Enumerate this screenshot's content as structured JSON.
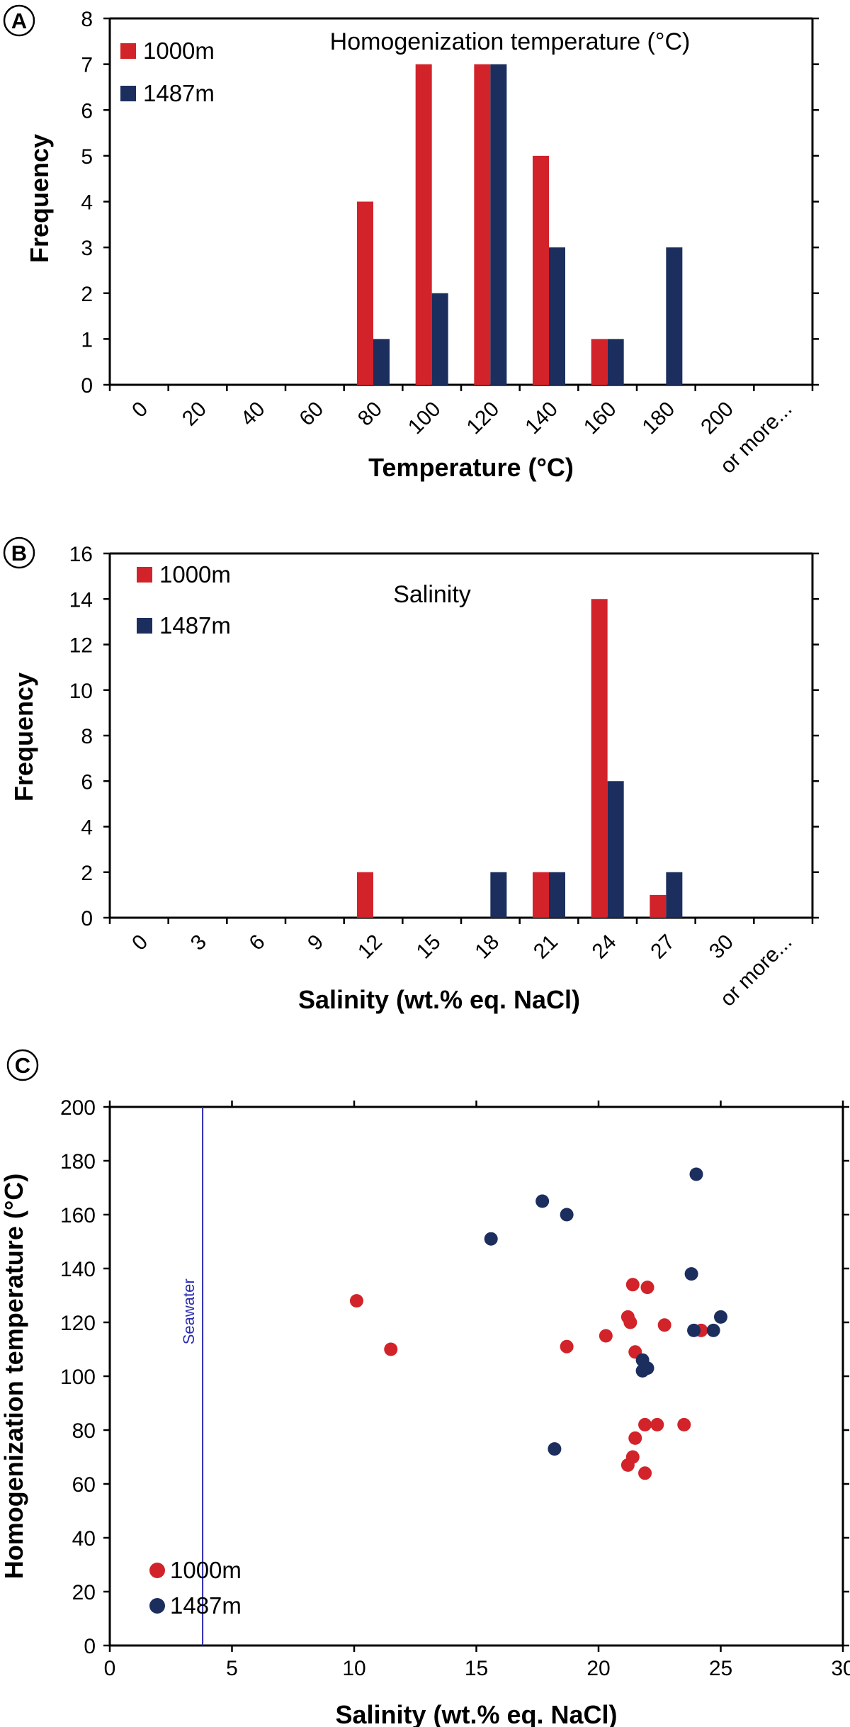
{
  "colors": {
    "red": "#d2232a",
    "navy": "#1b2e5e",
    "seawater": "#2b2bb0",
    "axis": "#000000"
  },
  "chart_data": [
    {
      "type": "bar",
      "panel": "A",
      "title": "Homogenization  temperature (°C)",
      "xlabel": "Temperature (°C)",
      "ylabel": "Frequency",
      "categories": [
        "0",
        "20",
        "40",
        "60",
        "80",
        "100",
        "120",
        "140",
        "160",
        "180",
        "200",
        "or more..."
      ],
      "series": [
        {
          "name": "1000m",
          "color": "#d2232a",
          "values": [
            0,
            0,
            0,
            0,
            4,
            7,
            7,
            5,
            1,
            0,
            0,
            0
          ]
        },
        {
          "name": "1487m",
          "color": "#1b2e5e",
          "values": [
            0,
            0,
            0,
            0,
            1,
            2,
            7,
            3,
            1,
            3,
            0,
            0
          ]
        }
      ],
      "ylim": [
        0,
        8
      ],
      "yticks": [
        0,
        1,
        2,
        3,
        4,
        5,
        6,
        7,
        8
      ],
      "legend": "top-left",
      "grid": false
    },
    {
      "type": "bar",
      "panel": "B",
      "title": "Salinity",
      "xlabel": "Salinity (wt.% eq. NaCl)",
      "ylabel": "Frequency",
      "categories": [
        "0",
        "3",
        "6",
        "9",
        "12",
        "15",
        "18",
        "21",
        "24",
        "27",
        "30",
        "or more..."
      ],
      "series": [
        {
          "name": "1000m",
          "color": "#d2232a",
          "values": [
            0,
            0,
            0,
            0,
            2,
            0,
            0,
            2,
            14,
            1,
            0,
            0
          ]
        },
        {
          "name": "1487m",
          "color": "#1b2e5e",
          "values": [
            0,
            0,
            0,
            0,
            0,
            0,
            2,
            2,
            6,
            2,
            0,
            0
          ]
        }
      ],
      "ylim": [
        0,
        16
      ],
      "yticks": [
        0,
        2,
        4,
        6,
        8,
        10,
        12,
        14,
        16
      ],
      "legend": "top-left",
      "grid": false
    },
    {
      "type": "scatter",
      "panel": "C",
      "xlabel": "Salinity (wt.% eq. NaCl)",
      "ylabel": "Homogenization temperature (°C)",
      "xlim": [
        0,
        30
      ],
      "ylim": [
        0,
        200
      ],
      "xticks": [
        0,
        5,
        10,
        15,
        20,
        25,
        30
      ],
      "yticks": [
        0,
        20,
        40,
        60,
        80,
        100,
        120,
        140,
        160,
        180,
        200
      ],
      "annotation": {
        "label": "Seawater",
        "x": 3.8
      },
      "series": [
        {
          "name": "1000m",
          "color": "#d2232a",
          "points": [
            [
              10.1,
              128
            ],
            [
              11.5,
              110
            ],
            [
              18.7,
              111
            ],
            [
              20.3,
              115
            ],
            [
              21.2,
              122
            ],
            [
              21.3,
              120
            ],
            [
              21.4,
              134
            ],
            [
              21.5,
              109
            ],
            [
              22.0,
              133
            ],
            [
              22.7,
              119
            ],
            [
              24.2,
              117
            ],
            [
              21.2,
              67
            ],
            [
              21.4,
              70
            ],
            [
              21.5,
              77
            ],
            [
              21.9,
              64
            ],
            [
              21.9,
              82
            ],
            [
              22.4,
              82
            ],
            [
              23.5,
              82
            ]
          ]
        },
        {
          "name": "1487m",
          "color": "#1b2e5e",
          "points": [
            [
              15.6,
              151
            ],
            [
              17.7,
              165
            ],
            [
              18.7,
              160
            ],
            [
              24.0,
              175
            ],
            [
              23.8,
              138
            ],
            [
              25.0,
              122
            ],
            [
              24.7,
              117
            ],
            [
              23.9,
              117
            ],
            [
              21.8,
              106
            ],
            [
              22.0,
              103
            ],
            [
              21.8,
              102
            ],
            [
              18.2,
              73
            ]
          ]
        }
      ],
      "legend": "bottom-left",
      "grid": false
    }
  ]
}
